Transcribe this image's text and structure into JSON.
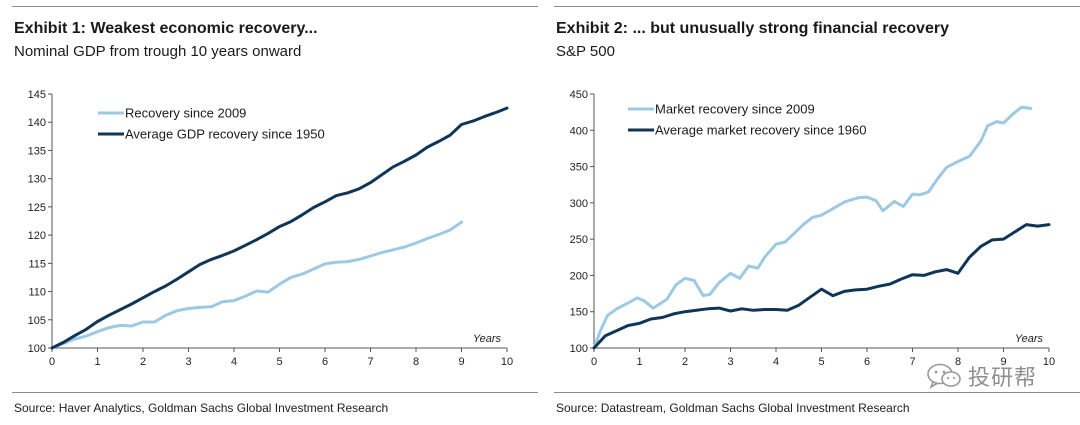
{
  "panels": [
    {
      "title": "Exhibit 1: Weakest economic recovery...",
      "subtitle": "Nominal GDP from trough 10 years onward",
      "source": "Source: Haver Analytics, Goldman Sachs Global Investment Research"
    },
    {
      "title": "Exhibit 2: ... but unusually strong financial recovery",
      "subtitle": "S&P 500",
      "source": "Source: Datastream, Goldman Sachs Global Investment Research"
    }
  ],
  "watermark": {
    "text": "投研帮",
    "icon": "wechat-icon"
  },
  "colors": {
    "light": "#9cc9e4",
    "dark": "#0f3558",
    "axis": "#555555"
  },
  "chart_data": [
    {
      "type": "line",
      "title": "Exhibit 1: Weakest economic recovery...",
      "xlabel": "Years",
      "ylabel": "",
      "xlim": [
        0,
        10
      ],
      "ylim": [
        100,
        145
      ],
      "xticks": [
        0,
        1,
        2,
        3,
        4,
        5,
        6,
        7,
        8,
        9,
        10
      ],
      "yticks": [
        100,
        105,
        110,
        115,
        120,
        125,
        130,
        135,
        140,
        145
      ],
      "legend_position": "top-left",
      "series": [
        {
          "name": "Recovery since 2009",
          "color": "light",
          "x": [
            0,
            0.25,
            0.5,
            0.75,
            1,
            1.25,
            1.5,
            1.75,
            2,
            2.25,
            2.5,
            2.75,
            3,
            3.25,
            3.5,
            3.75,
            4,
            4.25,
            4.5,
            4.75,
            5,
            5.25,
            5.5,
            5.75,
            6,
            6.25,
            6.5,
            6.75,
            7,
            7.25,
            7.5,
            7.75,
            8,
            8.25,
            8.5,
            8.75,
            9
          ],
          "y": [
            100,
            100.8,
            101.6,
            102.1,
            102.9,
            103.6,
            104,
            103.9,
            104.6,
            104.6,
            105.8,
            106.6,
            107,
            107.2,
            107.3,
            108.2,
            108.4,
            109.2,
            110.1,
            109.9,
            111.3,
            112.5,
            113.1,
            114,
            114.9,
            115.2,
            115.3,
            115.7,
            116.3,
            116.9,
            117.4,
            117.9,
            118.6,
            119.4,
            120.1,
            120.9,
            122.3
          ]
        },
        {
          "name": "Average GDP recovery since 1950",
          "color": "dark",
          "x": [
            0,
            0.25,
            0.5,
            0.75,
            1,
            1.25,
            1.5,
            1.75,
            2,
            2.25,
            2.5,
            2.75,
            3,
            3.25,
            3.5,
            3.75,
            4,
            4.25,
            4.5,
            4.75,
            5,
            5.25,
            5.5,
            5.75,
            6,
            6.25,
            6.5,
            6.75,
            7,
            7.25,
            7.5,
            7.75,
            8,
            8.25,
            8.5,
            8.75,
            9,
            9.25,
            9.5,
            9.75,
            10
          ],
          "y": [
            100,
            101,
            102.2,
            103.3,
            104.7,
            105.8,
            106.8,
            107.8,
            108.9,
            110,
            111,
            112.2,
            113.5,
            114.8,
            115.7,
            116.4,
            117.2,
            118.2,
            119.2,
            120.3,
            121.5,
            122.4,
            123.6,
            124.9,
            125.9,
            127,
            127.5,
            128.2,
            129.3,
            130.7,
            132.1,
            133.1,
            134.2,
            135.6,
            136.6,
            137.7,
            139.6,
            140.2,
            141,
            141.7,
            142.5
          ]
        }
      ]
    },
    {
      "type": "line",
      "title": "Exhibit 2: ... but unusually strong financial recovery",
      "xlabel": "Years",
      "ylabel": "",
      "xlim": [
        0,
        10
      ],
      "ylim": [
        100,
        450
      ],
      "xticks": [
        0,
        1,
        2,
        3,
        4,
        5,
        6,
        7,
        8,
        9,
        10
      ],
      "yticks": [
        100,
        150,
        200,
        250,
        300,
        350,
        400,
        450
      ],
      "legend_position": "top-left",
      "series": [
        {
          "name": "Market recovery since 2009",
          "color": "light",
          "x": [
            0,
            0.15,
            0.3,
            0.5,
            0.75,
            0.95,
            1.1,
            1.3,
            1.6,
            1.8,
            2,
            2.2,
            2.4,
            2.55,
            2.75,
            3,
            3.2,
            3.4,
            3.6,
            3.75,
            4,
            4.2,
            4.4,
            4.6,
            4.8,
            5,
            5.25,
            5.5,
            5.8,
            6,
            6.2,
            6.35,
            6.6,
            6.8,
            7,
            7.15,
            7.35,
            7.55,
            7.75,
            8,
            8.25,
            8.5,
            8.65,
            8.85,
            9,
            9.2,
            9.4,
            9.6
          ],
          "y": [
            100,
            125,
            145,
            154,
            162,
            169,
            165,
            155,
            167,
            187,
            196,
            193,
            172,
            174,
            190,
            203,
            196,
            213,
            210,
            225,
            243,
            246,
            258,
            270,
            280,
            283,
            292,
            301,
            307,
            308,
            303,
            289,
            302,
            295,
            312,
            311,
            315,
            333,
            349,
            357,
            364,
            385,
            406,
            412,
            410,
            422,
            432,
            430
          ]
        },
        {
          "name": "Average market recovery since 1960",
          "color": "dark",
          "x": [
            0,
            0.25,
            0.5,
            0.75,
            1,
            1.25,
            1.5,
            1.75,
            2,
            2.25,
            2.5,
            2.75,
            3,
            3.25,
            3.5,
            3.75,
            4,
            4.25,
            4.5,
            4.75,
            5,
            5.25,
            5.5,
            5.75,
            6,
            6.25,
            6.5,
            6.75,
            7,
            7.25,
            7.5,
            7.75,
            8,
            8.25,
            8.5,
            8.75,
            9,
            9.25,
            9.5,
            9.75,
            10
          ],
          "y": [
            100,
            117,
            124,
            131,
            134,
            140,
            142,
            147,
            150,
            152,
            154,
            155,
            151,
            154,
            152,
            153,
            153,
            152,
            159,
            170,
            181,
            172,
            178,
            180,
            181,
            185,
            188,
            195,
            201,
            200,
            205,
            208,
            203,
            225,
            240,
            249,
            250,
            260,
            270,
            268,
            270
          ]
        }
      ]
    }
  ]
}
